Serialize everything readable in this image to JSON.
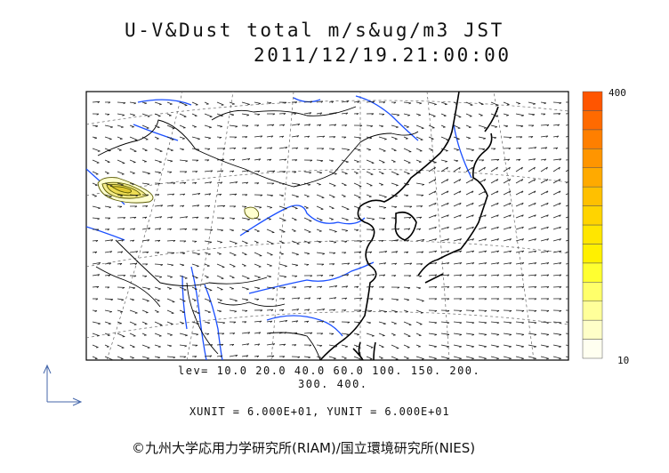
{
  "header": {
    "title": "U-V&Dust total m/s&ug/m3 JST",
    "datetime": "2011/12/19.21:00:00"
  },
  "map": {
    "region": "East Asia",
    "colors": {
      "coastline": "#000000",
      "rivers": "#1a4fff",
      "graticule": "#666666",
      "vectors": "#222222",
      "dust_low": "#ffffd0",
      "dust_mid": "#f0e070",
      "dust_contour": "#5a5a00"
    }
  },
  "levels": {
    "line1": "lev= 10.0 20.0 40.0 60.0 100. 150. 200.",
    "line2": "300. 400."
  },
  "units": {
    "text": "XUNIT = 6.000E+01, YUNIT = 6.000E+01"
  },
  "colorbar": {
    "max_label": "400",
    "min_label": "10",
    "colors": [
      "#fffff0",
      "#ffffc8",
      "#ffff9a",
      "#ffff6a",
      "#ffff30",
      "#fff000",
      "#ffe600",
      "#ffd400",
      "#ffc000",
      "#ffaa00",
      "#ff9500",
      "#ff7f00",
      "#ff6a00",
      "#ff5500"
    ]
  },
  "credit": {
    "text": "©九州大学応用力学研究所(RIAM)/国立環境研究所(NIES)"
  }
}
